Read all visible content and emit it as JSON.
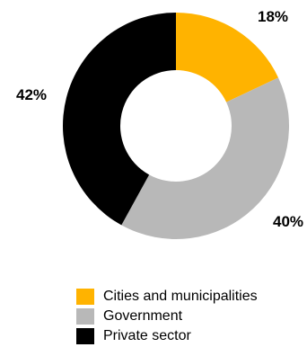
{
  "chart_data": {
    "type": "pie",
    "title": "",
    "donut": true,
    "series": [
      {
        "name": "Cities and municipalities",
        "value": 18,
        "label": "18%",
        "color": "#FFB300"
      },
      {
        "name": "Government",
        "value": 40,
        "label": "40%",
        "color": "#B8B8B8"
      },
      {
        "name": "Private sector",
        "value": 42,
        "label": "42%",
        "color": "#000000"
      }
    ],
    "legend_position": "bottom-right"
  }
}
